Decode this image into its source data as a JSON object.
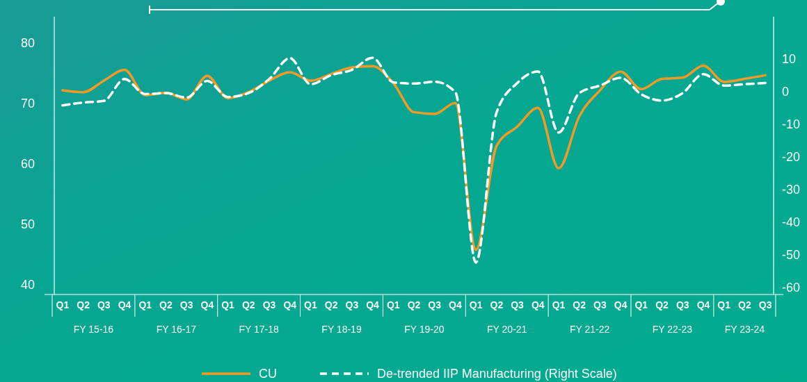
{
  "chart_data": {
    "type": "line",
    "categories": [
      "Q1",
      "Q2",
      "Q3",
      "Q4",
      "Q1",
      "Q2",
      "Q3",
      "Q4",
      "Q1",
      "Q2",
      "Q3",
      "Q4",
      "Q1",
      "Q2",
      "Q3",
      "Q4",
      "Q1",
      "Q2",
      "Q3",
      "Q4",
      "Q1",
      "Q2",
      "Q3",
      "Q4",
      "Q1",
      "Q2",
      "Q3",
      "Q4",
      "Q1",
      "Q2",
      "Q3",
      "Q4",
      "Q1",
      "Q2",
      "Q3"
    ],
    "annotations": [
      "FY 15-16",
      "FY 16-17",
      "FY 17-18",
      "FY 18-19",
      "FY 19-20",
      "FY 20-21",
      "FY 21-22",
      "FY 22-23",
      "FY 23-24"
    ],
    "series": [
      {
        "name": "CU",
        "color": "#f39a26",
        "line_style": "solid",
        "values": [
          71.8,
          71.5,
          73.4,
          75.2,
          71.0,
          71.4,
          70.3,
          74.2,
          70.5,
          71.5,
          73.4,
          74.8,
          73.4,
          74.5,
          75.6,
          75.8,
          73.0,
          68.2,
          67.9,
          69.7,
          45.4,
          62.6,
          65.8,
          68.9,
          58.9,
          67.5,
          71.8,
          74.9,
          72.0,
          73.7,
          73.9,
          75.9,
          73.2,
          73.7,
          74.3
        ]
      },
      {
        "name": "De-trended  IIP Manufacturing (Right Scale)",
        "color": "#ffffff",
        "line_style": "dashed",
        "axis": "y2",
        "values": [
          -4.9,
          -4.0,
          -3.5,
          3.2,
          -1.4,
          -1.1,
          -2.5,
          2.6,
          -2.3,
          -1.1,
          3.2,
          9.6,
          1.6,
          4.4,
          6.0,
          9.7,
          2.2,
          1.8,
          2.4,
          -0.8,
          -53,
          -7.0,
          2.0,
          5.5,
          -13.2,
          -1.1,
          1.2,
          3.6,
          -1.5,
          -3.4,
          -1.1,
          4.7,
          1.2,
          1.6,
          2.0
        ]
      }
    ],
    "ylim": [
      38,
      84
    ],
    "yticks": [
      40,
      50,
      60,
      70,
      80
    ],
    "y2lim": [
      -62.8,
      22.3
    ],
    "y2ticks": [
      -60,
      -50,
      -40,
      -30,
      -20,
      -10,
      0,
      10
    ],
    "legend": "bottom",
    "grid": false
  }
}
